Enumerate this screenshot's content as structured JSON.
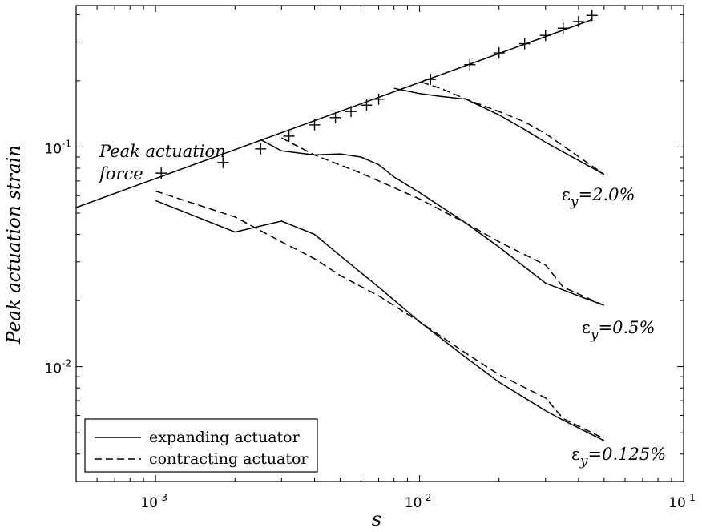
{
  "chart_data": {
    "type": "line",
    "xlabel": "s",
    "ylabel": "Peak actuation strain",
    "xscale": "log",
    "yscale": "log",
    "xlim": [
      0.0005,
      0.1
    ],
    "ylim": [
      0.003,
      0.44
    ],
    "x_tick_labels": [
      {
        "base": "10",
        "exp": "-3",
        "value": 0.001
      },
      {
        "base": "10",
        "exp": "-2",
        "value": 0.01
      },
      {
        "base": "10",
        "exp": "-1",
        "value": 0.1
      }
    ],
    "y_tick_labels": [
      {
        "base": "10",
        "exp": "-2",
        "value": 0.01
      },
      {
        "base": "10",
        "exp": "-1",
        "value": 0.1
      }
    ],
    "annotations": [
      {
        "id": "peak-force",
        "lines": [
          "Peak actuation",
          "force"
        ]
      },
      {
        "id": "eps-2",
        "prefix": "ε",
        "sub": "y",
        "suffix": "=2.0%"
      },
      {
        "id": "eps-05",
        "prefix": "ε",
        "sub": "y",
        "suffix": "=0.5%"
      },
      {
        "id": "eps-0125",
        "prefix": "ε",
        "sub": "y",
        "suffix": "=0.125%"
      }
    ],
    "legend": {
      "placement": "bottom-left",
      "entries": [
        {
          "label": "expanding actuator",
          "style": "solid"
        },
        {
          "label": "contracting actuator",
          "style": "dashed"
        }
      ]
    },
    "series": [
      {
        "id": "peak-force-line",
        "style": "solid",
        "x": [
          0.0005,
          0.045
        ],
        "y": [
          0.053,
          0.38
        ]
      },
      {
        "id": "peak-force-markers",
        "style": "plus",
        "x": [
          0.00105,
          0.0018,
          0.0025,
          0.0032,
          0.004,
          0.0048,
          0.0055,
          0.0063,
          0.007,
          0.011,
          0.0155,
          0.02,
          0.025,
          0.03,
          0.035,
          0.04,
          0.045
        ],
        "y": [
          0.076,
          0.085,
          0.098,
          0.112,
          0.126,
          0.136,
          0.145,
          0.155,
          0.165,
          0.203,
          0.237,
          0.268,
          0.295,
          0.322,
          0.347,
          0.372,
          0.397
        ]
      },
      {
        "id": "eps2-expanding",
        "style": "solid",
        "x": [
          0.008,
          0.01,
          0.012,
          0.015,
          0.02,
          0.025,
          0.03,
          0.05
        ],
        "y": [
          0.185,
          0.175,
          0.17,
          0.165,
          0.14,
          0.12,
          0.105,
          0.075
        ]
      },
      {
        "id": "eps2-contracting",
        "style": "dashed",
        "x": [
          0.0102,
          0.012,
          0.015,
          0.02,
          0.025,
          0.03,
          0.05
        ],
        "y": [
          0.197,
          0.185,
          0.165,
          0.145,
          0.13,
          0.115,
          0.075
        ]
      },
      {
        "id": "eps05-expanding",
        "style": "solid",
        "x": [
          0.0025,
          0.003,
          0.004,
          0.005,
          0.006,
          0.007,
          0.008,
          0.01,
          0.015,
          0.02,
          0.03,
          0.04,
          0.05
        ],
        "y": [
          0.108,
          0.096,
          0.092,
          0.093,
          0.09,
          0.083,
          0.073,
          0.062,
          0.045,
          0.035,
          0.024,
          0.021,
          0.019
        ]
      },
      {
        "id": "eps05-contracting",
        "style": "dashed",
        "x": [
          0.003,
          0.004,
          0.006,
          0.01,
          0.015,
          0.02,
          0.03,
          0.035,
          0.05
        ],
        "y": [
          0.11,
          0.092,
          0.076,
          0.058,
          0.045,
          0.037,
          0.029,
          0.023,
          0.019
        ]
      },
      {
        "id": "eps0125-expanding",
        "style": "solid",
        "x": [
          0.001,
          0.002,
          0.003,
          0.004,
          0.005,
          0.007,
          0.01,
          0.015,
          0.02,
          0.03,
          0.035,
          0.05
        ],
        "y": [
          0.057,
          0.041,
          0.046,
          0.04,
          0.032,
          0.023,
          0.016,
          0.011,
          0.0085,
          0.0063,
          0.0057,
          0.0046
        ]
      },
      {
        "id": "eps0125-contracting",
        "style": "dashed",
        "x": [
          0.001,
          0.002,
          0.003,
          0.004,
          0.005,
          0.007,
          0.01,
          0.015,
          0.02,
          0.03,
          0.035,
          0.05
        ],
        "y": [
          0.063,
          0.048,
          0.037,
          0.031,
          0.026,
          0.021,
          0.016,
          0.0115,
          0.0092,
          0.0072,
          0.0058,
          0.0047
        ]
      }
    ]
  }
}
